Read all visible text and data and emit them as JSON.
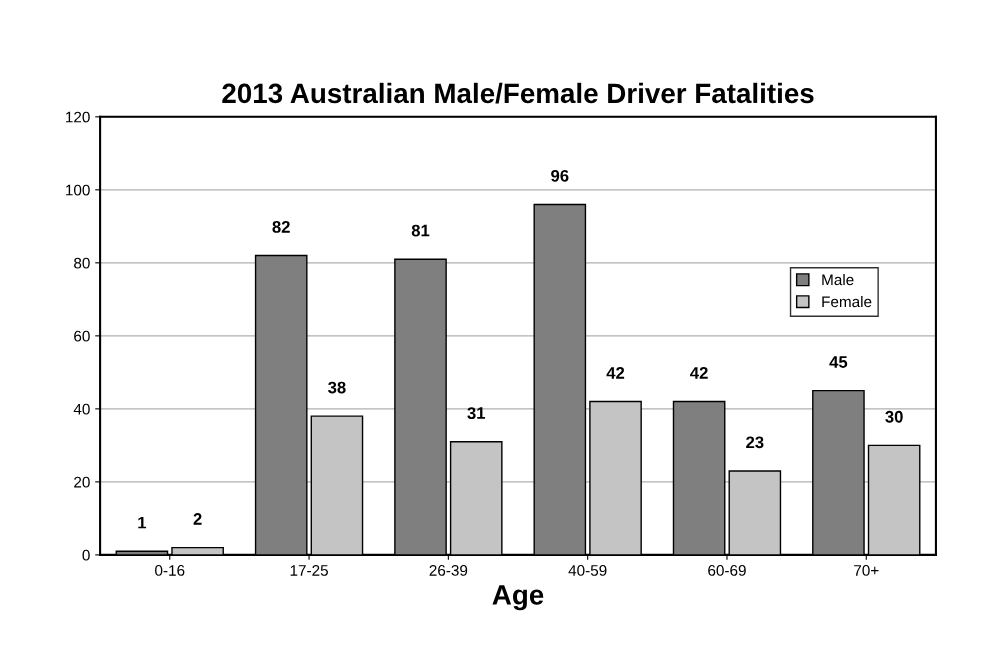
{
  "chart_data": {
    "type": "bar",
    "title": "2013 Australian Male/Female Driver Fatalities",
    "xlabel": "Age",
    "categories": [
      "0-16",
      "17-25",
      "26-39",
      "40-59",
      "60-69",
      "70+"
    ],
    "series": [
      {
        "name": "Male",
        "color": "#7f7f7f",
        "values": [
          1,
          82,
          81,
          96,
          42,
          45
        ]
      },
      {
        "name": "Female",
        "color": "#c4c4c4",
        "values": [
          2,
          38,
          31,
          42,
          23,
          30
        ]
      }
    ],
    "ylim": [
      0,
      120
    ],
    "yticks": [
      0,
      20,
      40,
      60,
      80,
      100,
      120
    ],
    "grid": "y",
    "legend": "right",
    "data_labels": true
  }
}
